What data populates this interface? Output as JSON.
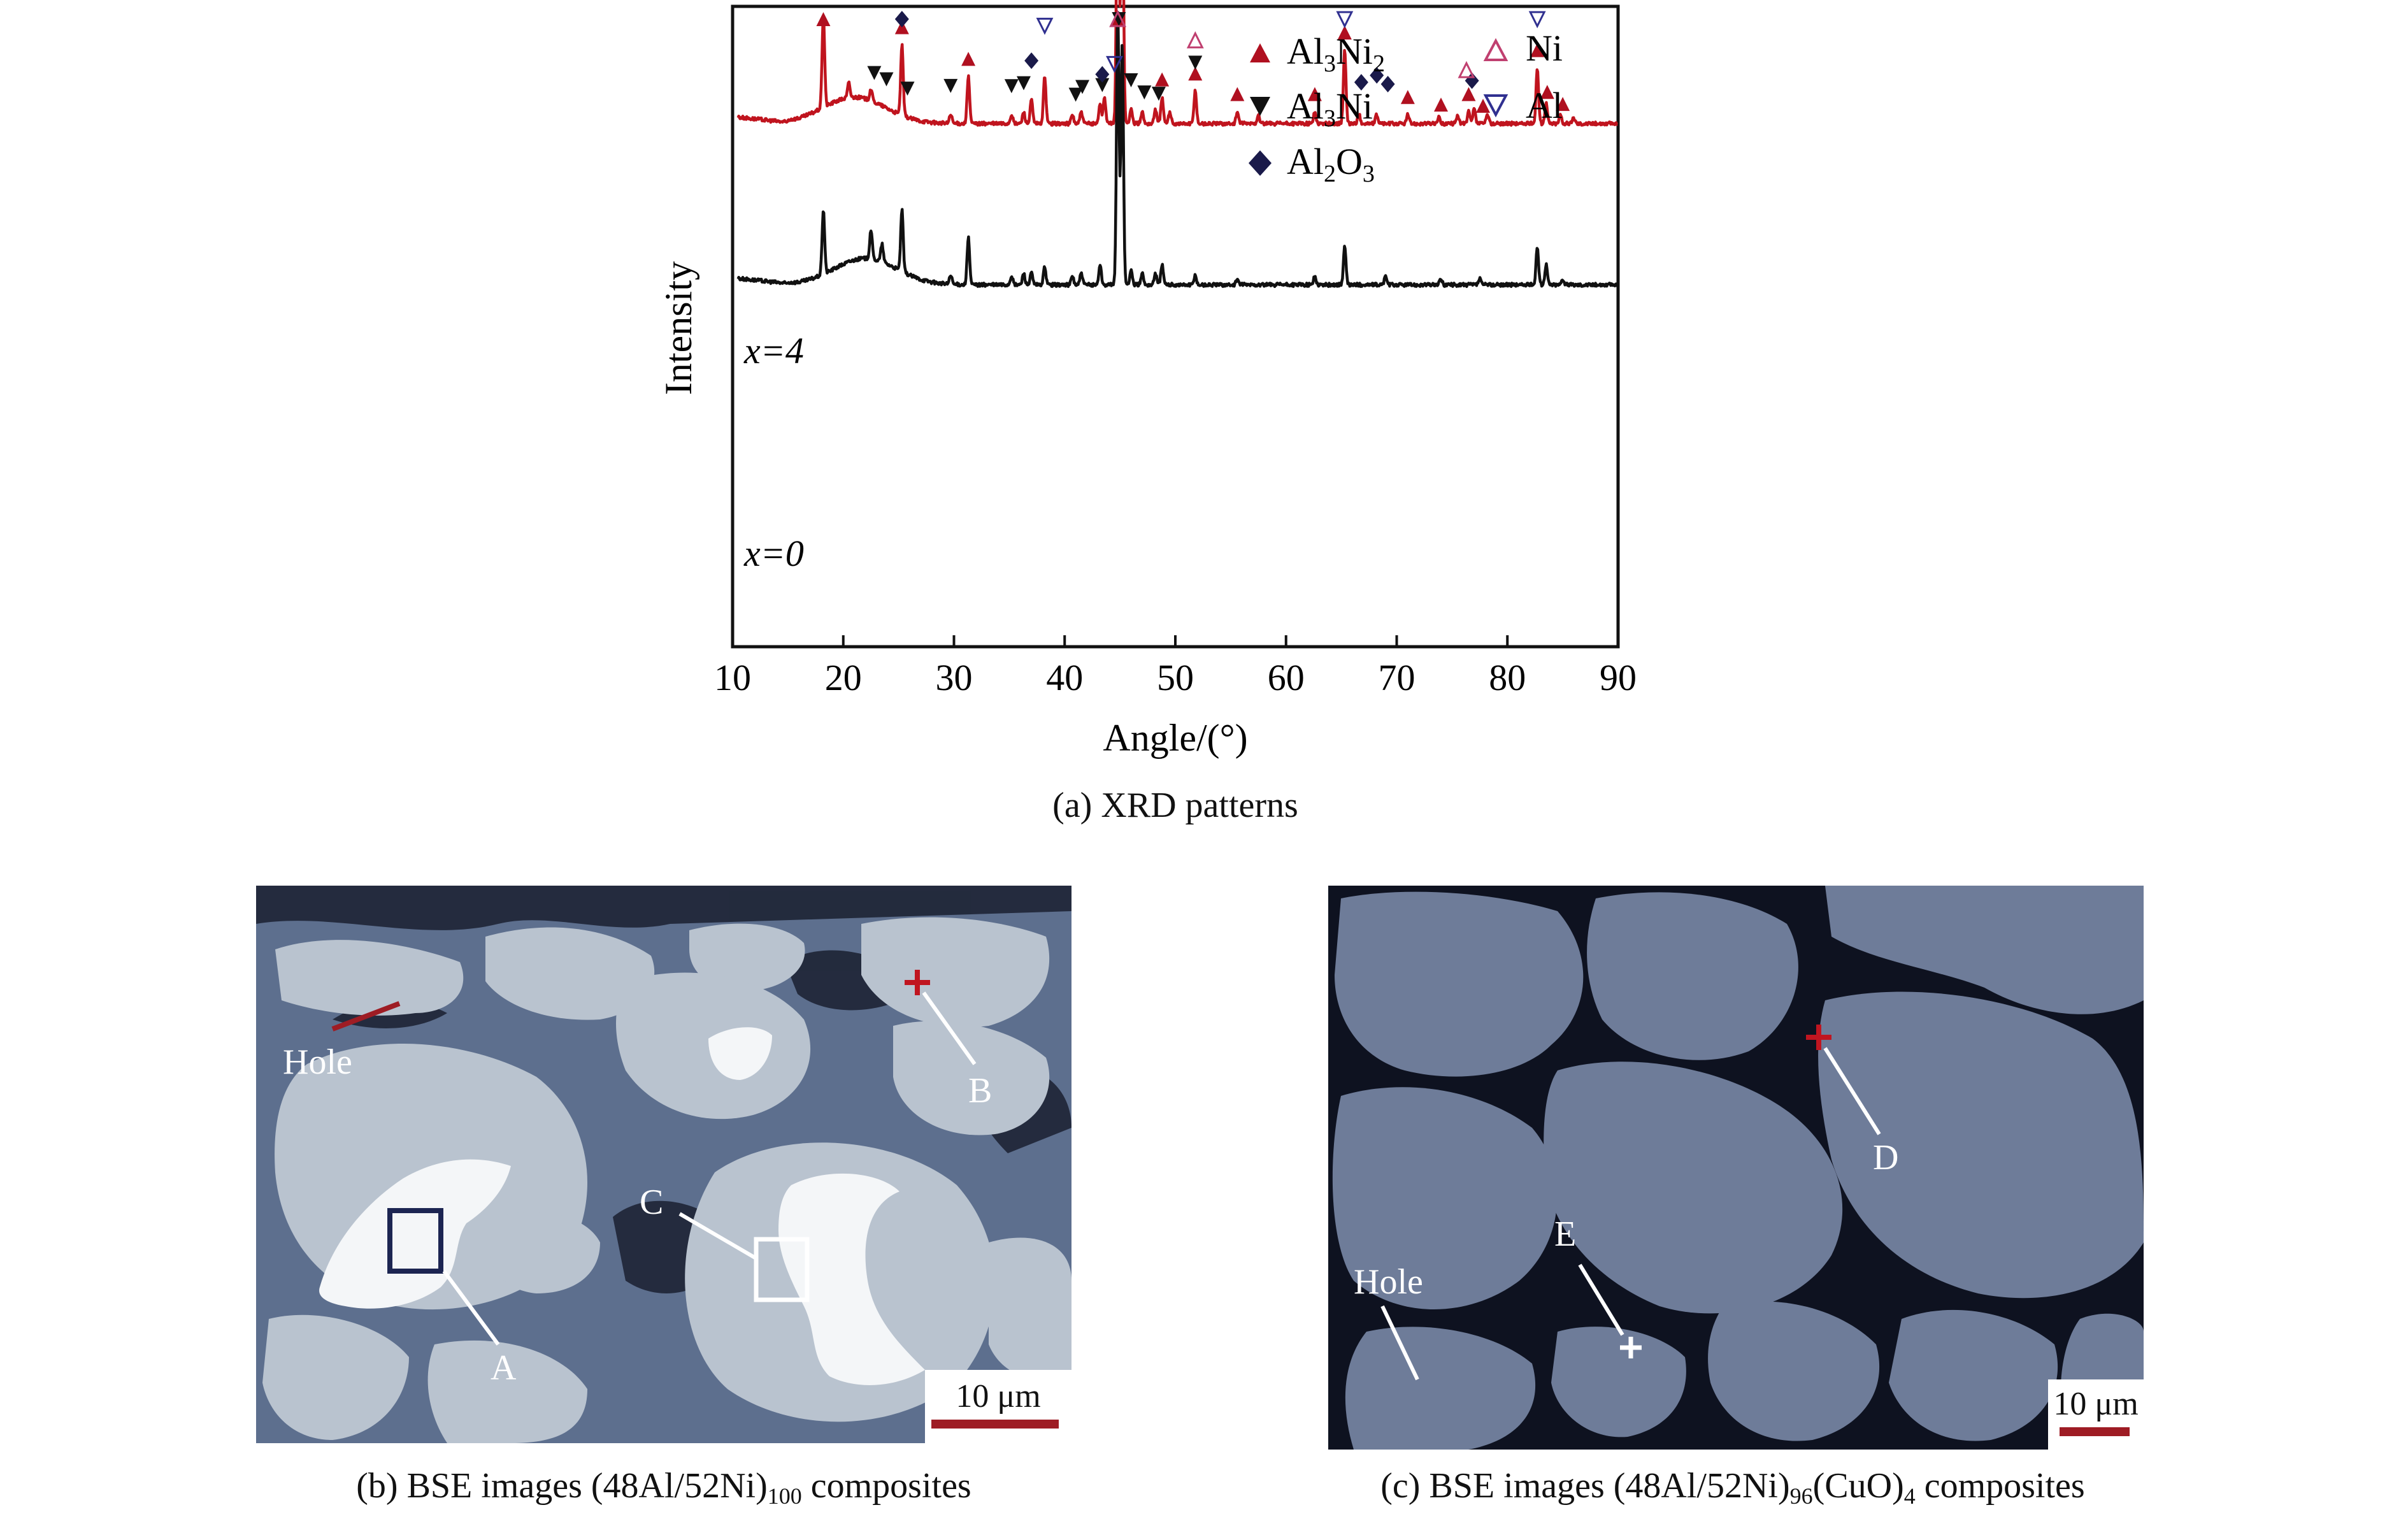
{
  "chart_data": {
    "type": "line",
    "xlabel": "Angle/(°)",
    "ylabel": "Intensity",
    "xlim": [
      10,
      90
    ],
    "xticks": [
      10,
      20,
      30,
      40,
      50,
      60,
      70,
      80,
      90
    ],
    "grid": false,
    "legend": {
      "placement": "top-right",
      "entries": [
        {
          "label": "Al3Ni2",
          "marker": "filled-triangle-up",
          "color": "#b01020"
        },
        {
          "label": "Al3Ni",
          "marker": "filled-triangle-down",
          "color": "#111111"
        },
        {
          "label": "Al2O3",
          "marker": "filled-diamond",
          "color": "#1a1a4a"
        },
        {
          "label": "Ni",
          "marker": "open-triangle-up",
          "color": "#c04070"
        },
        {
          "label": "Al",
          "marker": "open-triangle-down",
          "color": "#303090"
        }
      ]
    },
    "series": [
      {
        "name": "x=4",
        "color": "#c0141e",
        "baseline": 0.4,
        "hump": {
          "center": 21,
          "width": 4,
          "height": 0.09
        },
        "peaks": [
          [
            18.2,
            0.32
          ],
          [
            20.5,
            0.05
          ],
          [
            22.5,
            0.04
          ],
          [
            25.3,
            0.24
          ],
          [
            29.7,
            0.03
          ],
          [
            31.3,
            0.16
          ],
          [
            35.2,
            0.03
          ],
          [
            36.3,
            0.04
          ],
          [
            37.0,
            0.08
          ],
          [
            38.2,
            0.16
          ],
          [
            40.7,
            0.03
          ],
          [
            41.5,
            0.04
          ],
          [
            43.2,
            0.07
          ],
          [
            43.6,
            0.09
          ],
          [
            44.8,
            1.0
          ],
          [
            45.2,
            0.9
          ],
          [
            46.0,
            0.05
          ],
          [
            47.0,
            0.04
          ],
          [
            48.2,
            0.05
          ],
          [
            48.8,
            0.09
          ],
          [
            49.5,
            0.04
          ],
          [
            51.8,
            0.11
          ],
          [
            55.6,
            0.04
          ],
          [
            57.5,
            0.03
          ],
          [
            62.6,
            0.04
          ],
          [
            65.3,
            0.25
          ],
          [
            66.6,
            0.03
          ],
          [
            68.2,
            0.03
          ],
          [
            71.0,
            0.03
          ],
          [
            73.8,
            0.02
          ],
          [
            75.5,
            0.03
          ],
          [
            76.5,
            0.04
          ],
          [
            77.0,
            0.05
          ],
          [
            78.2,
            0.03
          ],
          [
            82.7,
            0.19
          ],
          [
            83.5,
            0.07
          ],
          [
            84.8,
            0.03
          ],
          [
            86.0,
            0.02
          ]
        ]
      },
      {
        "name": "x=0",
        "color": "#111111",
        "baseline": 0.95,
        "hump": {
          "center": 22,
          "width": 4,
          "height": 0.09
        },
        "peaks": [
          [
            18.2,
            0.22
          ],
          [
            22.5,
            0.1
          ],
          [
            23.5,
            0.06
          ],
          [
            25.3,
            0.21
          ],
          [
            29.7,
            0.03
          ],
          [
            31.3,
            0.16
          ],
          [
            35.2,
            0.03
          ],
          [
            36.3,
            0.04
          ],
          [
            37.0,
            0.04
          ],
          [
            38.2,
            0.06
          ],
          [
            40.7,
            0.03
          ],
          [
            41.5,
            0.04
          ],
          [
            43.2,
            0.07
          ],
          [
            44.8,
            0.94
          ],
          [
            45.2,
            0.82
          ],
          [
            46.0,
            0.05
          ],
          [
            47.0,
            0.04
          ],
          [
            48.2,
            0.04
          ],
          [
            48.8,
            0.07
          ],
          [
            51.8,
            0.03
          ],
          [
            55.6,
            0.02
          ],
          [
            62.6,
            0.03
          ],
          [
            65.3,
            0.13
          ],
          [
            69.0,
            0.03
          ],
          [
            74.0,
            0.02
          ],
          [
            77.5,
            0.02
          ],
          [
            82.7,
            0.13
          ],
          [
            83.5,
            0.07
          ],
          [
            85.0,
            0.02
          ]
        ]
      }
    ],
    "markers_x4": [
      {
        "phase": "Al3Ni2",
        "x": [
          18.2,
          25.3,
          31.3,
          44.8,
          48.8,
          51.8,
          55.6,
          62.6,
          65.3,
          71.0,
          74.0,
          76.5,
          77.8,
          82.7,
          83.6,
          85.0
        ]
      },
      {
        "phase": "Al3Ni",
        "x": [
          22.8,
          23.9,
          25.8,
          29.7,
          35.2,
          36.3,
          41.0,
          41.6,
          43.4,
          44.9,
          46.0,
          47.2,
          48.5,
          51.8
        ]
      },
      {
        "phase": "Al2O3",
        "x": [
          25.3,
          37.0,
          43.4,
          66.8,
          68.2,
          69.2,
          76.8
        ]
      },
      {
        "phase": "Ni",
        "x": [
          44.8,
          51.8,
          76.3
        ]
      },
      {
        "phase": "Al",
        "x": [
          38.2,
          44.5,
          65.3,
          82.7
        ]
      }
    ]
  },
  "xrd": {
    "ylabel": "Intensity",
    "xlabel": "Angle/(°)",
    "label_x4": "x=4",
    "label_x0": "x=0",
    "tick_labels": [
      "10",
      "20",
      "30",
      "40",
      "50",
      "60",
      "70",
      "80",
      "90"
    ],
    "legend": {
      "al3ni2_base": "Al",
      "al3ni2_sub1": "3",
      "al3ni2_mid": "Ni",
      "al3ni2_sub2": "2",
      "al3ni_base": "Al",
      "al3ni_sub1": "3",
      "al3ni_mid": "Ni",
      "al2o3_base": "Al",
      "al2o3_sub1": "2",
      "al2o3_mid": "O",
      "al2o3_sub2": "3",
      "ni": "Ni",
      "al": "Al"
    }
  },
  "captions": {
    "a": "(a) XRD patterns",
    "b_prefix": "(b) BSE images (48Al/52Ni)",
    "b_sub": "100",
    "b_suffix": " composites",
    "c_prefix": "(c) BSE images (48Al/52Ni)",
    "c_sub": "96",
    "c_mid": "(CuO)",
    "c_sub2": "4",
    "c_suffix": " composites"
  },
  "micrograph_b": {
    "labels": {
      "hole": "Hole",
      "a": "A",
      "b": "B",
      "c": "C"
    },
    "scale_bar": "10 μm"
  },
  "micrograph_c": {
    "labels": {
      "hole": "Hole",
      "d": "D",
      "e": "E"
    },
    "scale_bar": "10 μm"
  }
}
